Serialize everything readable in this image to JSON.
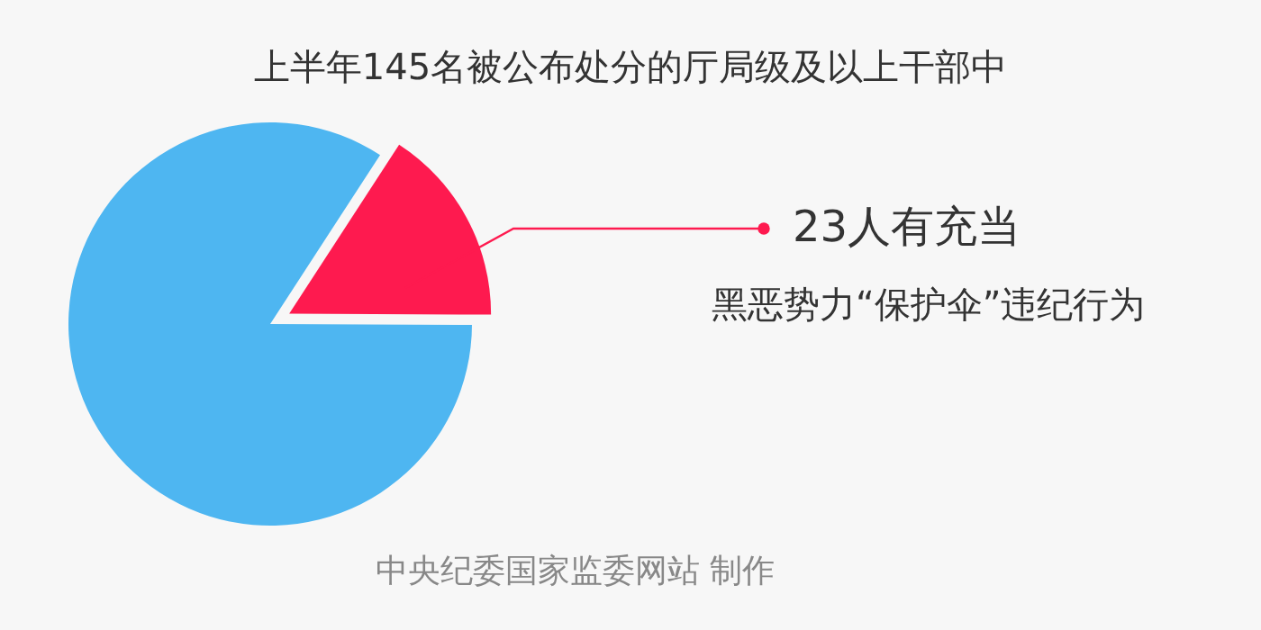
{
  "chart_data": {
    "type": "pie",
    "title": "上半年145名被公布处分的厅局级及以上干部中",
    "categories": [
      null,
      null
    ],
    "values": [
      15.9,
      84.1
    ],
    "colors": [
      "#fe1a4f",
      "#4eb6f1"
    ],
    "annotations": [
      "23人有充当",
      "黑恶势力“保护伞”违纪行为",
      "中央纪委国家监委网站 制作"
    ]
  }
}
